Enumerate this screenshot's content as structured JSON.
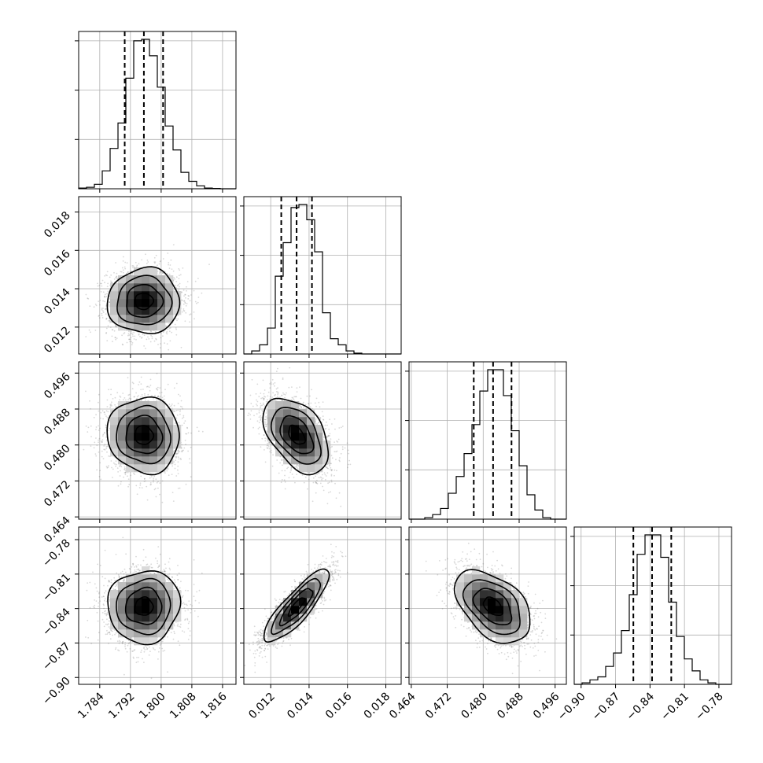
{
  "chart_data": {
    "type": "corner",
    "parameters": [
      {
        "ticks": [
          "1.784",
          "1.792",
          "1.800",
          "1.808",
          "1.816"
        ],
        "tick_values": [
          1.784,
          1.792,
          1.8,
          1.808,
          1.816
        ],
        "range": [
          1.7785,
          1.8195
        ],
        "quantiles": [
          1.7905,
          1.7955,
          1.8005
        ],
        "hist": {
          "edges": [
            1.7785,
            1.78055,
            1.7826,
            1.78465,
            1.7867,
            1.78875,
            1.7908,
            1.79285,
            1.7949,
            1.79695,
            1.799,
            1.80105,
            1.8031,
            1.80515,
            1.8072,
            1.80925,
            1.8113,
            1.81335,
            1.8154,
            1.81745,
            1.8195
          ],
          "counts": [
            0.5,
            1,
            3,
            12,
            27,
            44,
            74,
            99,
            100,
            89,
            68,
            42,
            26,
            11,
            5,
            2,
            0.5,
            0.2,
            0,
            0
          ]
        }
      },
      {
        "ticks": [
          "0.012",
          "0.014",
          "0.016",
          "0.018"
        ],
        "tick_values": [
          0.012,
          0.014,
          0.016,
          0.018
        ],
        "range": [
          0.0106,
          0.0188
        ],
        "quantiles": [
          0.01255,
          0.01335,
          0.01415
        ],
        "hist": {
          "edges": [
            0.0106,
            0.01101,
            0.01142,
            0.01183,
            0.01224,
            0.01265,
            0.01306,
            0.01347,
            0.01388,
            0.01429,
            0.0147,
            0.01511,
            0.01552,
            0.01593,
            0.01634,
            0.01675,
            0.01716,
            0.01757,
            0.01798,
            0.01839,
            0.0188
          ],
          "counts": [
            0,
            2,
            6,
            17,
            51,
            73,
            96,
            98,
            88,
            67,
            27,
            10,
            6,
            2,
            0.5,
            0,
            0,
            0,
            0,
            0
          ]
        }
      },
      {
        "ticks": [
          "0.464",
          "0.472",
          "0.480",
          "0.488",
          "0.496"
        ],
        "tick_values": [
          0.464,
          0.472,
          0.48,
          0.488,
          0.496
        ],
        "range": [
          0.4635,
          0.4985
        ],
        "quantiles": [
          0.4779,
          0.4822,
          0.4863
        ],
        "hist": {
          "edges": [
            0.4635,
            0.46525,
            0.467,
            0.46875,
            0.4705,
            0.47225,
            0.474,
            0.47575,
            0.4775,
            0.47925,
            0.481,
            0.48275,
            0.4845,
            0.48625,
            0.488,
            0.48975,
            0.4915,
            0.49325,
            0.495,
            0.49675,
            0.4985
          ],
          "counts": [
            0,
            0,
            1,
            3,
            7,
            17,
            28,
            43,
            62,
            84,
            98,
            98,
            81,
            58,
            35,
            16,
            6,
            1,
            0,
            0
          ]
        }
      },
      {
        "ticks": [
          "−0.90",
          "−0.87",
          "−0.84",
          "−0.81",
          "−0.78"
        ],
        "tick_values": [
          -0.9,
          -0.87,
          -0.84,
          -0.81,
          -0.78
        ],
        "range": [
          -0.906,
          -0.769
        ],
        "quantiles": [
          -0.8545,
          -0.8382,
          -0.8215
        ],
        "hist": {
          "edges": [
            -0.906,
            -0.89915,
            -0.8923,
            -0.88545,
            -0.8786,
            -0.87175,
            -0.8649,
            -0.85805,
            -0.8512,
            -0.84435,
            -0.8375,
            -0.83065,
            -0.8238,
            -0.81695,
            -0.8101,
            -0.80325,
            -0.7964,
            -0.78955,
            -0.7827,
            -0.77585,
            -0.769
          ],
          "counts": [
            0,
            1,
            3,
            5,
            12,
            21,
            36,
            60,
            87,
            100,
            100,
            85,
            55,
            32,
            17,
            9,
            3,
            1,
            0,
            0
          ]
        }
      }
    ],
    "correlations": [
      [
        0,
        1,
        0.02
      ],
      [
        0,
        2,
        -0.05
      ],
      [
        1,
        2,
        -0.45
      ],
      [
        0,
        3,
        0.04
      ],
      [
        1,
        3,
        0.85
      ],
      [
        2,
        3,
        -0.45
      ]
    ],
    "means": [
      1.7955,
      0.01335,
      0.4822,
      -0.8382
    ],
    "sigmas": [
      0.0047,
      0.00085,
      0.0042,
      0.0158
    ],
    "contour_levels_sigma": [
      0.5,
      1.0,
      1.5,
      2.0
    ],
    "grid": true
  }
}
